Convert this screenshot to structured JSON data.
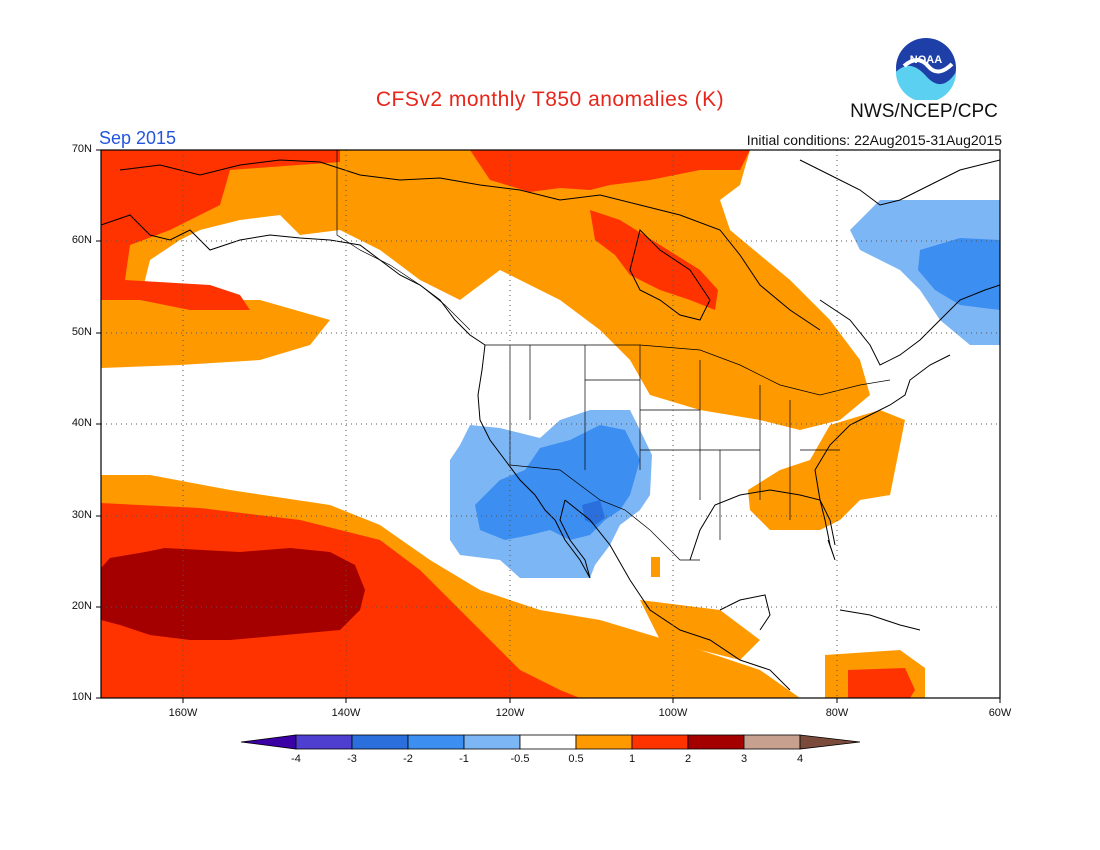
{
  "header": {
    "title": "CFSv2 monthly T850 anomalies (K)",
    "month": "Sep 2015",
    "initial_conditions": "Initial conditions: 22Aug2015-31Aug2015",
    "agency": "NWS/NCEP/CPC",
    "logo_text": "NOAA"
  },
  "axes": {
    "lat_labels": [
      "70N",
      "60N",
      "50N",
      "40N",
      "30N",
      "20N",
      "10N"
    ],
    "lon_labels": [
      "160W",
      "140W",
      "120W",
      "100W",
      "80W",
      "60W"
    ],
    "lat_range": [
      10,
      70
    ],
    "lon_range": [
      -170,
      -60
    ],
    "grid": "dotted"
  },
  "legend": {
    "labels": [
      "-4",
      "-3",
      "-2",
      "-1",
      "-0.5",
      "0.5",
      "1",
      "2",
      "3",
      "4"
    ],
    "colors": [
      "#3b00a6",
      "#4e3fd0",
      "#2a6fdc",
      "#3c8ef0",
      "#7db6f5",
      "#ffffff",
      "#ff9900",
      "#ff3300",
      "#a50000",
      "#c8a090",
      "#7a4a3a"
    ]
  },
  "chart_data": {
    "type": "heatmap",
    "variable": "T850 anomalies",
    "units": "K",
    "bins": [
      "< -4",
      "-4 to -3",
      "-3 to -2",
      "-2 to -1",
      "-1 to -0.5",
      "-0.5 to 0.5",
      "0.5 to 1",
      "1 to 2",
      "2 to 3",
      "3 to 4",
      "> 4"
    ],
    "regions": [
      {
        "area": "Central North Pacific near Hawaii",
        "anomaly_bin": "2 to 3"
      },
      {
        "area": "Subtropical North Pacific",
        "anomaly_bin": "1 to 2"
      },
      {
        "area": "Alaska / Bering Sea",
        "anomaly_bin": "1 to 2"
      },
      {
        "area": "Hudson Bay region",
        "anomaly_bin": "1 to 2"
      },
      {
        "area": "Great Lakes / Eastern US",
        "anomaly_bin": "0.5 to 1"
      },
      {
        "area": "Desert Southwest / Baja California",
        "anomaly_bin": "-1 to -0.5"
      },
      {
        "area": "Arizona / New Mexico core",
        "anomaly_bin": "-2 to -1"
      },
      {
        "area": "Labrador Sea",
        "anomaly_bin": "-1 to -0.5"
      },
      {
        "area": "Caribbean",
        "anomaly_bin": "1 to 2"
      }
    ]
  }
}
